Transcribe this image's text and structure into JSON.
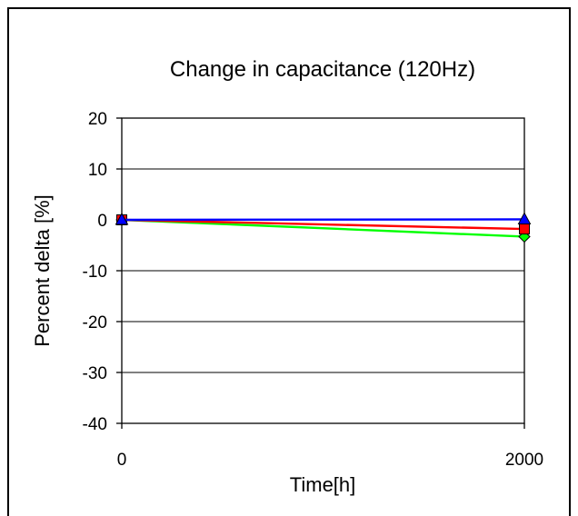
{
  "chart_data": {
    "type": "line",
    "title": "Change in capacitance (120Hz)",
    "xlabel": "Time[h]",
    "ylabel": "Percent delta [%]",
    "x": [
      0,
      2000
    ],
    "x_tick_labels": [
      "0",
      "2000"
    ],
    "ylim": [
      -40,
      20
    ],
    "y_ticks": [
      20,
      10,
      0,
      -10,
      -20,
      -30,
      -40
    ],
    "y_tick_labels": [
      "20",
      "10",
      "0",
      "-10",
      "-20",
      "-30",
      "-40"
    ],
    "grid": true,
    "series": [
      {
        "color": "#00ff00",
        "marker": "diamond",
        "values": [
          0,
          -3.3
        ]
      },
      {
        "color": "#ff0000",
        "marker": "square",
        "values": [
          0,
          -1.8
        ]
      },
      {
        "color": "#0000ff",
        "marker": "triangle",
        "values": [
          0,
          0.1
        ]
      }
    ]
  }
}
